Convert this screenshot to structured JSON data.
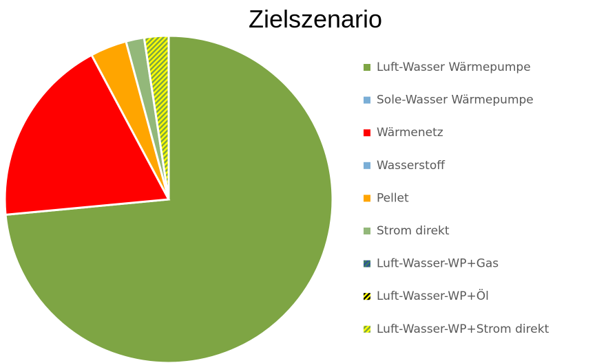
{
  "chart_data": {
    "type": "pie",
    "title": "Zielszenario",
    "categories": [
      "Luft-Wasser Wärmepumpe",
      "Sole-Wasser Wärmepumpe",
      "Wärmenetz",
      "Wasserstoff",
      "Pellet",
      "Strom direkt",
      "Luft-Wasser-WP+Gas",
      "Luft-Wasser-WP+Öl",
      "Luft-Wasser-WP+Strom direkt"
    ],
    "values": [
      73.5,
      0,
      18.7,
      0,
      3.6,
      1.8,
      0,
      0,
      2.4
    ],
    "colors": [
      "#7ea544",
      "#7aaed6",
      "#ff0000",
      "#7aaed6",
      "#ffa500",
      "#93b87a",
      "url(#hatch-gas)",
      "url(#hatch-oel)",
      "url(#hatch-strom)"
    ]
  }
}
